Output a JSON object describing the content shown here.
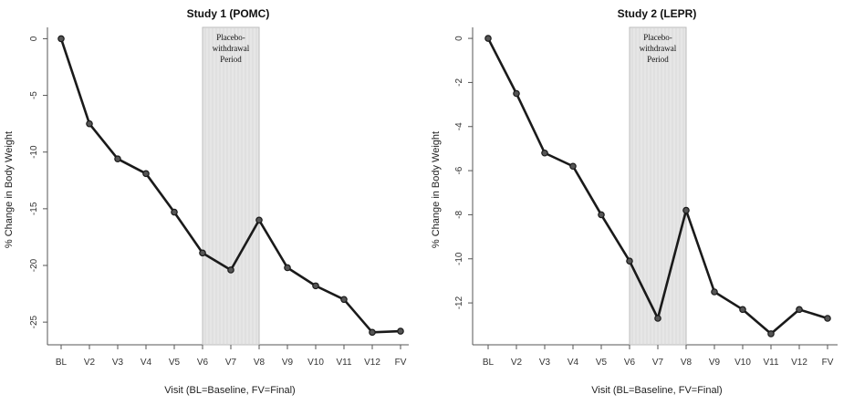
{
  "chart_data": [
    {
      "type": "line",
      "title": "Study 1 (POMC)",
      "xlabel": "Visit (BL=Baseline, FV=Final)",
      "ylabel": "% Change in Body Weight",
      "categories": [
        "BL",
        "V2",
        "V3",
        "V4",
        "V5",
        "V6",
        "V7",
        "V8",
        "V9",
        "V10",
        "V11",
        "V12",
        "FV"
      ],
      "values": [
        0,
        -7.5,
        -10.6,
        -11.9,
        -15.3,
        -18.9,
        -20.4,
        -16.0,
        -20.2,
        -21.8,
        -23.0,
        -25.9,
        -25.8
      ],
      "ylim": [
        -27,
        1
      ],
      "yticks": [
        0,
        -5,
        -10,
        -15,
        -20,
        -25
      ],
      "ytick_labels": [
        "0",
        "-5",
        "-10",
        "-15",
        "-20",
        "-25"
      ],
      "shaded_region": {
        "from": "V6",
        "to": "V8",
        "label": [
          "Placebo-",
          "withdrawal",
          "Period"
        ]
      },
      "grid": false
    },
    {
      "type": "line",
      "title": "Study 2 (LEPR)",
      "xlabel": "Visit (BL=Baseline, FV=Final)",
      "ylabel": "% Change in Body Weight",
      "categories": [
        "BL",
        "V2",
        "V3",
        "V4",
        "V5",
        "V6",
        "V7",
        "V8",
        "V9",
        "V10",
        "V11",
        "V12",
        "FV"
      ],
      "values": [
        0,
        -2.5,
        -5.2,
        -5.8,
        -8.0,
        -10.1,
        -12.7,
        -7.8,
        -11.5,
        -12.3,
        -13.4,
        -12.3,
        -12.7
      ],
      "ylim": [
        -13.9,
        0.5
      ],
      "yticks": [
        0,
        -2,
        -4,
        -6,
        -8,
        -10,
        -12
      ],
      "ytick_labels": [
        "0",
        "-2",
        "-4",
        "-6",
        "-8",
        "-10",
        "-12"
      ],
      "shaded_region": {
        "from": "V6",
        "to": "V8",
        "label": [
          "Placebo-",
          "withdrawal",
          "Period"
        ]
      },
      "grid": false
    }
  ]
}
